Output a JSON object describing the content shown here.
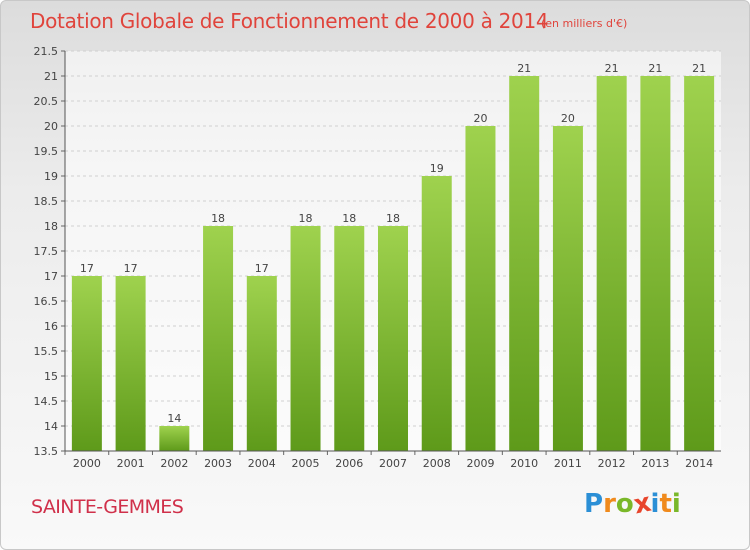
{
  "chart_data": {
    "type": "bar",
    "title": "Dotation Globale de Fonctionnement de 2000 à 2014",
    "subtitle": "(en milliers d'€)",
    "xlabel": "",
    "ylabel": "",
    "categories": [
      "2000",
      "2001",
      "2002",
      "2003",
      "2004",
      "2005",
      "2006",
      "2007",
      "2008",
      "2009",
      "2010",
      "2011",
      "2012",
      "2013",
      "2014"
    ],
    "values": [
      17,
      17,
      14,
      18,
      17,
      18,
      18,
      18,
      19,
      20,
      21,
      20,
      21,
      21,
      21
    ],
    "data_labels": [
      "17",
      "17",
      "14",
      "18",
      "17",
      "18",
      "18",
      "18",
      "19",
      "20",
      "21",
      "20",
      "21",
      "21",
      "21"
    ],
    "ylim": [
      13.5,
      21.5
    ],
    "yticks": [
      13.5,
      14,
      14.5,
      15,
      15.5,
      16,
      16.5,
      17,
      17.5,
      18,
      18.5,
      19,
      19.5,
      20,
      20.5,
      21,
      21.5
    ],
    "ytick_labels": [
      "13.5",
      "14",
      "14.5",
      "15",
      "15.5",
      "16",
      "16.5",
      "17",
      "17.5",
      "18",
      "18.5",
      "19",
      "19.5",
      "20",
      "20.5",
      "21",
      "21.5"
    ],
    "grid": true,
    "bar_color": "#8cc63f"
  },
  "commune": "SAINTE-GEMMES",
  "logo": {
    "letters": [
      "P",
      "r",
      "o",
      "x",
      "i",
      "t",
      "i"
    ],
    "colors": [
      "#2b8fd6",
      "#f08a1c",
      "#7ab829",
      "#e8452c",
      "#2b8fd6",
      "#f08a1c",
      "#7ab829"
    ]
  }
}
